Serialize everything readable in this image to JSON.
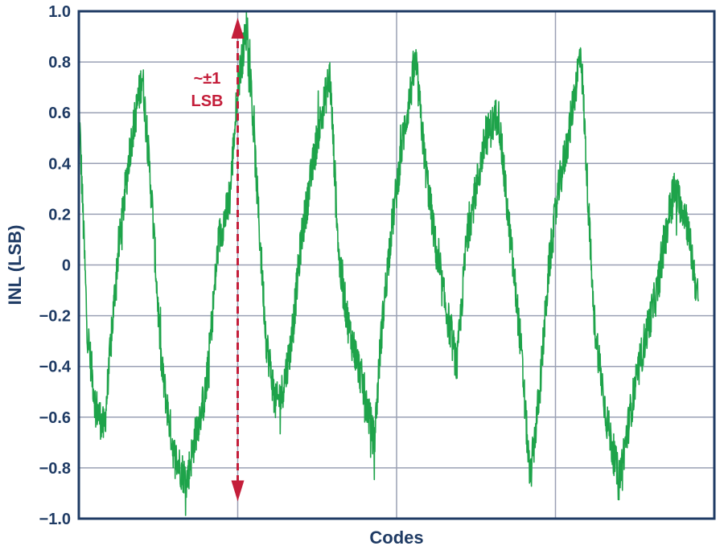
{
  "chart_data": {
    "type": "line",
    "title": "",
    "xlabel": "Codes",
    "ylabel": "INL (LSB)",
    "ylim": [
      -1.0,
      1.0
    ],
    "xlim": [
      0,
      100
    ],
    "y_ticks": [
      "1.0",
      "0.8",
      "0.6",
      "0.4",
      "0.2",
      "0",
      "−0.2",
      "−0.4",
      "−0.6",
      "−0.8",
      "−1.0"
    ],
    "x_ticks": [],
    "grid": true,
    "annotation": {
      "line1": "~±1",
      "line2": "LSB",
      "span": [
        -0.9,
        1.0
      ],
      "x": 25
    },
    "colors": {
      "series": "#1ea34a",
      "axes": "#1f3b64",
      "grid": "#9aa0b4",
      "annotation": "#c41e3a",
      "text": "#1f3b64"
    },
    "series": [
      {
        "x": [
          0,
          1.3,
          2.6,
          4,
          6,
          8,
          10,
          11.5,
          13,
          15,
          17,
          18.5,
          20,
          22,
          23.7,
          25,
          26.5,
          28.5,
          29.5,
          31,
          32,
          33.5,
          35,
          37.5,
          39.5,
          41,
          42.5,
          44.5,
          46.5,
          47.5,
          49,
          51,
          53,
          54.5,
          56.5,
          58,
          59.5,
          61,
          62.5,
          64,
          66,
          67.5,
          69.5,
          71,
          72.5,
          74,
          75.5,
          77,
          79,
          81,
          83,
          85,
          87,
          89,
          91,
          93.5,
          95.5,
          97.5
        ],
        "y": [
          0.65,
          -0.25,
          -0.55,
          -0.65,
          0.0,
          0.45,
          0.75,
          0.25,
          -0.4,
          -0.75,
          -0.85,
          -0.65,
          -0.5,
          0.1,
          0.25,
          0.7,
          0.95,
          0.1,
          -0.3,
          -0.55,
          -0.5,
          -0.3,
          0.1,
          0.5,
          0.75,
          0.0,
          -0.25,
          -0.45,
          -0.7,
          -0.3,
          0.1,
          0.5,
          0.8,
          0.4,
          0.0,
          -0.2,
          -0.4,
          0.1,
          0.3,
          0.5,
          0.6,
          0.2,
          -0.3,
          -0.85,
          -0.5,
          0.0,
          0.3,
          0.5,
          0.85,
          -0.2,
          -0.6,
          -0.85,
          -0.55,
          -0.3,
          -0.1,
          0.3,
          0.2,
          -0.15
        ]
      }
    ]
  }
}
